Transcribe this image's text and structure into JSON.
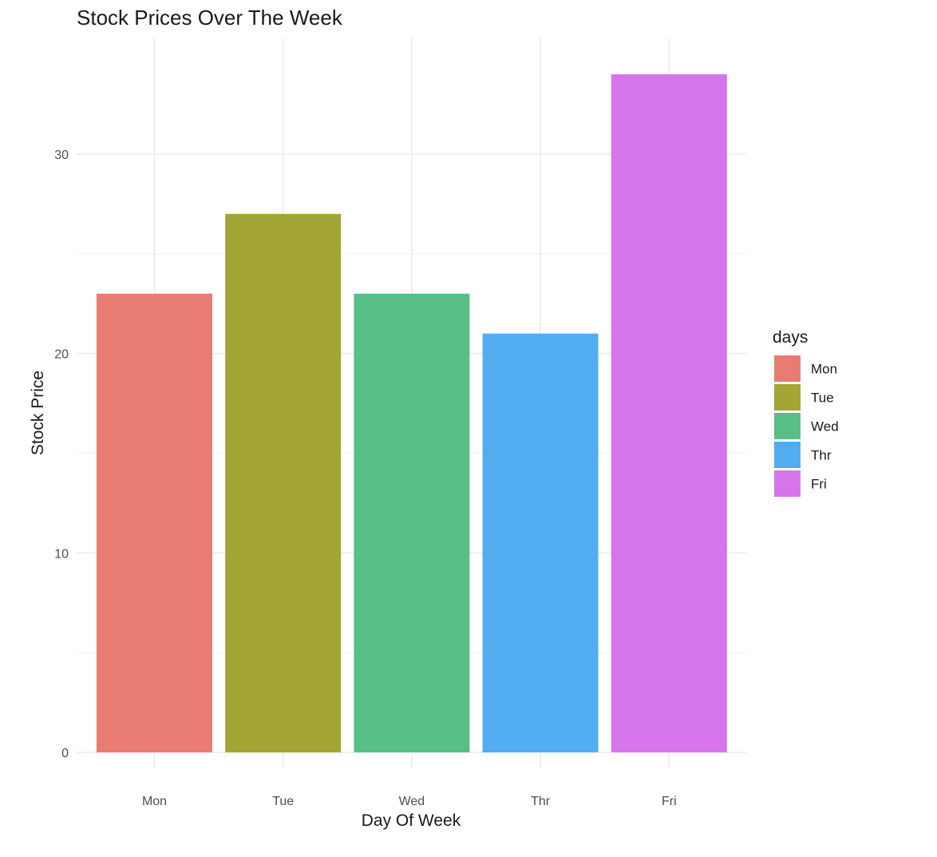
{
  "chart_data": {
    "type": "bar",
    "title": "Stock Prices Over The Week",
    "xlabel": "Day Of Week",
    "ylabel": "Stock Price",
    "categories": [
      "Mon",
      "Tue",
      "Wed",
      "Thr",
      "Fri"
    ],
    "values": [
      23,
      27,
      23,
      21,
      34
    ],
    "colors": [
      "#E87C73",
      "#A3A535",
      "#57BE85",
      "#51ADF0",
      "#D674EC"
    ],
    "ylim": [
      0,
      35
    ],
    "yticks": [
      0,
      10,
      20,
      30
    ],
    "grid": true,
    "legend": {
      "title": "days",
      "position": "right",
      "entries": [
        "Mon",
        "Tue",
        "Wed",
        "Thr",
        "Fri"
      ]
    }
  }
}
